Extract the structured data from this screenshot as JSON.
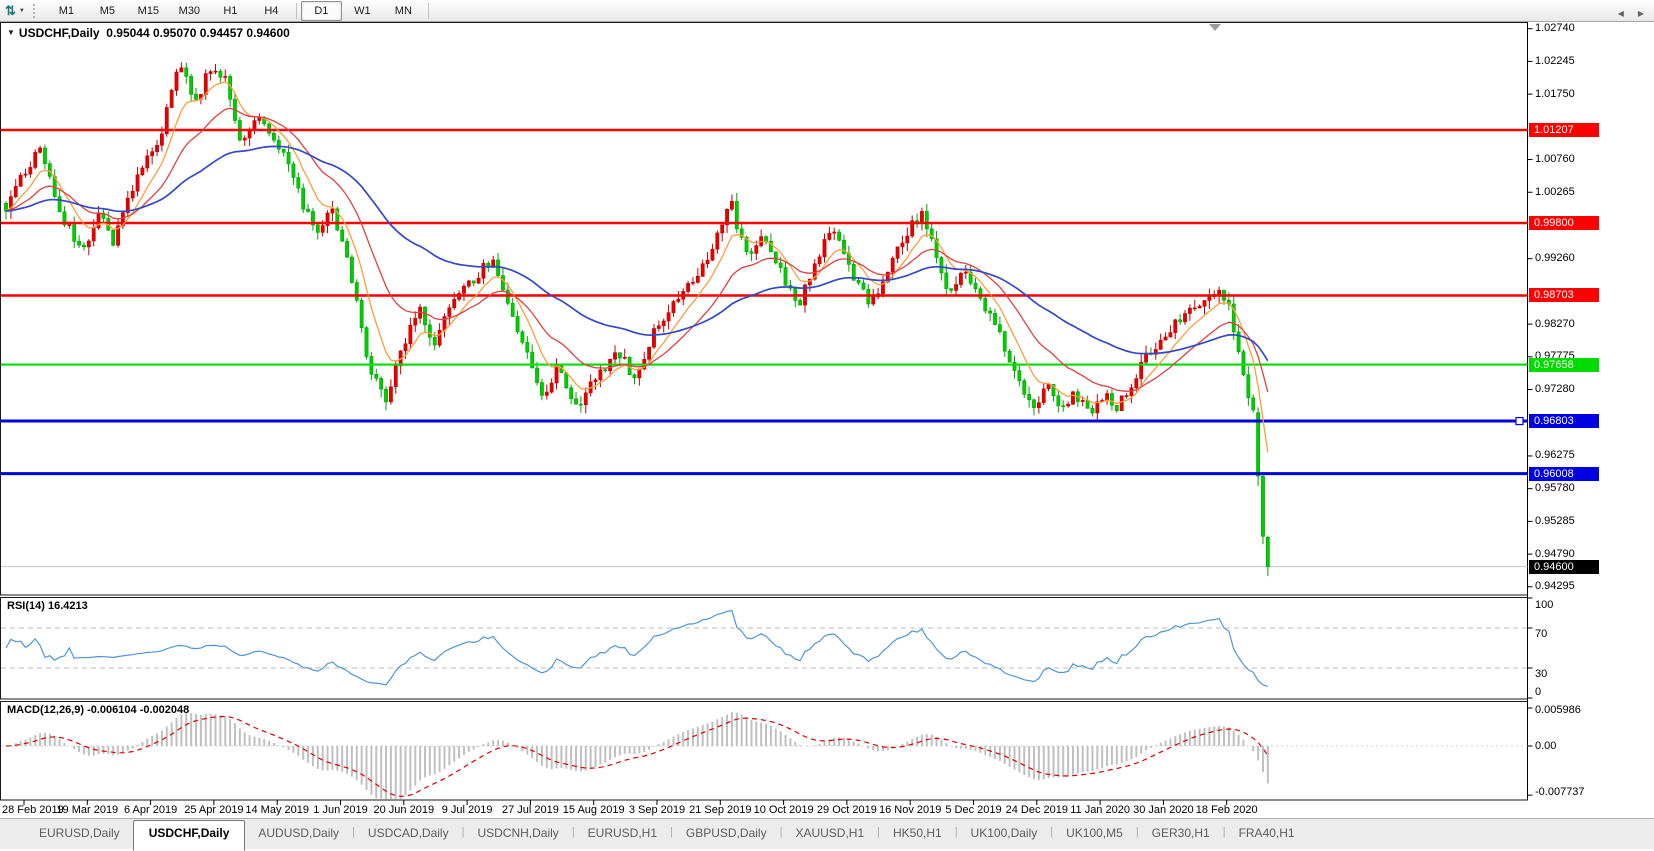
{
  "toolbar": {
    "chart_icon_glyph": "⇅",
    "dropdown_caret": "▼",
    "timeframes": [
      "M1",
      "M5",
      "M15",
      "M30",
      "H1",
      "H4",
      "D1",
      "W1",
      "MN"
    ],
    "active_timeframe": "D1"
  },
  "chart": {
    "symbol_label": "USDCHF,Daily",
    "ohlc_text": "0.95044 0.95070 0.94457 0.94600",
    "dropdown_glyph": "▼",
    "price_axis_ticks": [
      {
        "label": "1.02740",
        "price": 1.0274
      },
      {
        "label": "1.02245",
        "price": 1.02245
      },
      {
        "label": "1.01750",
        "price": 1.0175
      },
      {
        "label": "1.00760",
        "price": 1.0076
      },
      {
        "label": "1.00265",
        "price": 1.00265
      },
      {
        "label": "0.99260",
        "price": 0.9926
      },
      {
        "label": "0.98270",
        "price": 0.9827
      },
      {
        "label": "0.97775",
        "price": 0.97775
      },
      {
        "label": "0.97280",
        "price": 0.9728
      },
      {
        "label": "0.96275",
        "price": 0.96275
      },
      {
        "label": "0.95780",
        "price": 0.9578
      },
      {
        "label": "0.95285",
        "price": 0.95285
      },
      {
        "label": "0.94790",
        "price": 0.9479
      },
      {
        "label": "0.94295",
        "price": 0.94295
      }
    ],
    "levels": [
      {
        "label": "1.01207",
        "price": 1.01207,
        "color": "#fe0000",
        "width": 2.6
      },
      {
        "label": "0.99800",
        "price": 0.998,
        "color": "#fe0000",
        "width": 2.6
      },
      {
        "label": "0.98703",
        "price": 0.98703,
        "color": "#fe0000",
        "width": 2.6
      },
      {
        "label": "0.97658",
        "price": 0.97658,
        "color": "#00dc00",
        "width": 2.2
      },
      {
        "label": "0.96803",
        "price": 0.96803,
        "color": "#0000e0",
        "width": 3,
        "handle": true
      },
      {
        "label": "0.96008",
        "price": 0.96008,
        "color": "#0000e0",
        "width": 3
      }
    ],
    "current_price": {
      "label": "0.94600",
      "price": 0.946,
      "badge_bg": "#000000",
      "line_color": "#c6c6c6"
    }
  },
  "chart_data": {
    "type": "candlestick",
    "symbol": "USDCHF",
    "timeframe": "Daily",
    "candle_count": 260,
    "price_min": 0.94295,
    "price_max": 1.0274,
    "last_bar": {
      "open": 0.95044,
      "high": 0.9507,
      "low": 0.94457,
      "close": 0.946
    },
    "close_keyframes": [
      [
        0,
        1.0005
      ],
      [
        0.027,
        1.0095
      ],
      [
        0.044,
        0.999
      ],
      [
        0.06,
        0.9935
      ],
      [
        0.074,
        1.0
      ],
      [
        0.084,
        0.995
      ],
      [
        0.102,
        1.004
      ],
      [
        0.122,
        1.011
      ],
      [
        0.132,
        1.019
      ],
      [
        0.138,
        1.0225
      ],
      [
        0.15,
        1.016
      ],
      [
        0.162,
        1.0215
      ],
      [
        0.176,
        1.019
      ],
      [
        0.185,
        1.0105
      ],
      [
        0.2,
        1.0145
      ],
      [
        0.221,
        1.0085
      ],
      [
        0.237,
        0.9998
      ],
      [
        0.247,
        0.9962
      ],
      [
        0.257,
        1.0008
      ],
      [
        0.274,
        0.99
      ],
      [
        0.287,
        0.9765
      ],
      [
        0.3,
        0.9708
      ],
      [
        0.316,
        0.9802
      ],
      [
        0.328,
        0.9845
      ],
      [
        0.34,
        0.9798
      ],
      [
        0.353,
        0.9858
      ],
      [
        0.368,
        0.9888
      ],
      [
        0.385,
        0.9925
      ],
      [
        0.401,
        0.9845
      ],
      [
        0.414,
        0.9772
      ],
      [
        0.425,
        0.9718
      ],
      [
        0.437,
        0.9762
      ],
      [
        0.453,
        0.9702
      ],
      [
        0.471,
        0.9758
      ],
      [
        0.485,
        0.9782
      ],
      [
        0.498,
        0.9748
      ],
      [
        0.517,
        0.9828
      ],
      [
        0.534,
        0.9872
      ],
      [
        0.55,
        0.9912
      ],
      [
        0.562,
        0.9952
      ],
      [
        0.574,
        1.0012
      ],
      [
        0.588,
        0.9922
      ],
      [
        0.601,
        0.9962
      ],
      [
        0.615,
        0.9902
      ],
      [
        0.629,
        0.9858
      ],
      [
        0.645,
        0.9938
      ],
      [
        0.657,
        0.9968
      ],
      [
        0.67,
        0.9898
      ],
      [
        0.685,
        0.9858
      ],
      [
        0.699,
        0.9908
      ],
      [
        0.712,
        0.9962
      ],
      [
        0.726,
        0.9996
      ],
      [
        0.74,
        0.9908
      ],
      [
        0.75,
        0.9872
      ],
      [
        0.76,
        0.9912
      ],
      [
        0.776,
        0.9852
      ],
      [
        0.792,
        0.9792
      ],
      [
        0.805,
        0.9732
      ],
      [
        0.815,
        0.9702
      ],
      [
        0.826,
        0.9738
      ],
      [
        0.835,
        0.9702
      ],
      [
        0.847,
        0.9722
      ],
      [
        0.859,
        0.9692
      ],
      [
        0.871,
        0.9726
      ],
      [
        0.881,
        0.9702
      ],
      [
        0.892,
        0.9738
      ],
      [
        0.905,
        0.9782
      ],
      [
        0.918,
        0.9812
      ],
      [
        0.934,
        0.9842
      ],
      [
        0.95,
        0.9862
      ],
      [
        0.963,
        0.9876
      ],
      [
        0.971,
        0.984
      ],
      [
        0.978,
        0.978
      ],
      [
        0.984,
        0.972
      ],
      [
        0.99,
        0.968
      ],
      [
        0.995,
        0.965
      ],
      [
        1,
        0.963
      ]
    ],
    "tail_candles": [
      {
        "o": 0.9693,
        "h": 0.9701,
        "l": 0.9582,
        "c": 0.9597
      },
      {
        "o": 0.9597,
        "h": 0.9603,
        "l": 0.9494,
        "c": 0.9506
      },
      {
        "o": 0.95044,
        "h": 0.9507,
        "l": 0.94457,
        "c": 0.946
      }
    ],
    "overlays": [
      {
        "name": "ma-fast",
        "period": 8,
        "color": "#ff9c3c"
      },
      {
        "name": "ma-mid",
        "period": 20,
        "color": "#e04040"
      },
      {
        "name": "ma-slow",
        "period": 55,
        "color": "#3448c8"
      }
    ]
  },
  "rsi": {
    "name": "RSI(14)",
    "value": "16.4213",
    "period": 14,
    "upper_level": 70,
    "lower_level": 30,
    "line_color": "#4f96d8",
    "level_color": "#bdbdbd",
    "axis": [
      {
        "label": "100",
        "v": 100
      },
      {
        "label": "70",
        "v": 70
      },
      {
        "label": "30",
        "v": 30
      },
      {
        "label": "0",
        "v": 0
      }
    ]
  },
  "macd": {
    "name": "MACD(12,26,9)",
    "values": "-0.006104 -0.002048",
    "bar_color": "#c0c0c0",
    "signal_color": "#e00000",
    "axis": [
      {
        "label": "0.005986",
        "v": 0.005986
      },
      {
        "label": "0.00",
        "v": 0
      },
      {
        "label": "-0.007737",
        "v": -0.007737
      }
    ]
  },
  "dates": [
    "28 Feb 2019",
    "19 Mar 2019",
    "6 Apr 2019",
    "25 Apr 2019",
    "14 May 2019",
    "1 Jun 2019",
    "20 Jun 2019",
    "9 Jul 2019",
    "27 Jul 2019",
    "15 Aug 2019",
    "3 Sep 2019",
    "21 Sep 2019",
    "10 Oct 2019",
    "29 Oct 2019",
    "16 Nov 2019",
    "5 Dec 2019",
    "24 Dec 2019",
    "11 Jan 2020",
    "30 Jan 2020",
    "18 Feb 2020"
  ],
  "tabs": {
    "items": [
      "EURUSD,Daily",
      "USDCHF,Daily",
      "AUDUSD,Daily",
      "USDCAD,Daily",
      "USDCNH,Daily",
      "EURUSD,H1",
      "GBPUSD,Daily",
      "XAUUSD,H1",
      "HK50,H1",
      "UK100,Daily",
      "UK100,M5",
      "GER30,H1",
      "FRA40,H1"
    ],
    "active": "USDCHF,Daily",
    "scroll_left": "◀",
    "scroll_right": "▶"
  },
  "colors": {
    "candle_up": "#e60000",
    "candle_up_border": "#c40000",
    "candle_down": "#00ce00",
    "candle_down_border": "#00a400",
    "panel_border": "#1a1a1a",
    "shift_marker": "#9b9b9b"
  }
}
